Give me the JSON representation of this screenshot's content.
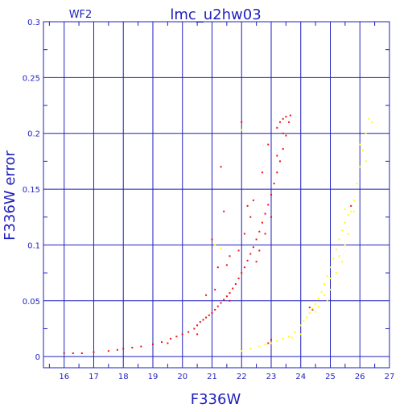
{
  "chart_data": {
    "type": "scatter",
    "title": "lmc_u2hw03",
    "subtitle": "WF2",
    "xlabel": "F336W",
    "ylabel": "F336W error",
    "xlim": [
      15.3,
      27
    ],
    "ylim": [
      -0.01,
      0.3
    ],
    "xticks": [
      "16",
      "17",
      "18",
      "19",
      "20",
      "21",
      "22",
      "23",
      "24",
      "25",
      "26",
      "27"
    ],
    "yticks": [
      "0",
      "0.05",
      "0.1",
      "0.15",
      "0.2",
      "0.25",
      "0.3"
    ],
    "grid": true,
    "colors": {
      "axis": "#1f1fbf",
      "series_main": "#ee1111",
      "series_secondary": "#ffff00"
    },
    "series": [
      {
        "points": [
          [
            16.0,
            0.003
          ],
          [
            16.3,
            0.003
          ],
          [
            16.6,
            0.003
          ],
          [
            17.0,
            0.004
          ],
          [
            17.5,
            0.005
          ],
          [
            17.8,
            0.006
          ],
          [
            18.0,
            0.007
          ],
          [
            18.3,
            0.008
          ],
          [
            18.6,
            0.009
          ],
          [
            19.0,
            0.011
          ],
          [
            19.3,
            0.013
          ],
          [
            19.6,
            0.016
          ],
          [
            19.8,
            0.018
          ],
          [
            20.0,
            0.02
          ],
          [
            20.2,
            0.022
          ],
          [
            20.4,
            0.025
          ],
          [
            20.5,
            0.028
          ],
          [
            20.6,
            0.031
          ],
          [
            20.7,
            0.033
          ],
          [
            20.8,
            0.035
          ],
          [
            20.9,
            0.037
          ],
          [
            21.0,
            0.039
          ],
          [
            21.1,
            0.042
          ],
          [
            21.2,
            0.045
          ],
          [
            21.3,
            0.048
          ],
          [
            21.4,
            0.051
          ],
          [
            21.5,
            0.054
          ],
          [
            21.6,
            0.057
          ],
          [
            21.7,
            0.061
          ],
          [
            21.8,
            0.065
          ],
          [
            21.9,
            0.07
          ],
          [
            22.0,
            0.075
          ],
          [
            22.1,
            0.08
          ],
          [
            22.2,
            0.086
          ],
          [
            22.3,
            0.092
          ],
          [
            22.4,
            0.098
          ],
          [
            22.5,
            0.105
          ],
          [
            22.6,
            0.112
          ],
          [
            22.7,
            0.12
          ],
          [
            22.8,
            0.128
          ],
          [
            22.9,
            0.136
          ],
          [
            23.0,
            0.145
          ],
          [
            23.1,
            0.155
          ],
          [
            23.2,
            0.165
          ],
          [
            23.3,
            0.175
          ],
          [
            23.4,
            0.186
          ],
          [
            23.5,
            0.198
          ],
          [
            23.6,
            0.21
          ],
          [
            23.65,
            0.216
          ],
          [
            23.5,
            0.215
          ],
          [
            23.4,
            0.213
          ],
          [
            23.3,
            0.21
          ],
          [
            23.2,
            0.205
          ],
          [
            21.0,
            0.105
          ],
          [
            20.8,
            0.055
          ],
          [
            21.2,
            0.08
          ],
          [
            21.4,
            0.13
          ],
          [
            21.3,
            0.17
          ],
          [
            22.0,
            0.21
          ],
          [
            21.1,
            0.06
          ],
          [
            21.6,
            0.09
          ],
          [
            22.1,
            0.11
          ],
          [
            22.4,
            0.14
          ],
          [
            22.7,
            0.165
          ],
          [
            22.9,
            0.19
          ],
          [
            22.2,
            0.135
          ],
          [
            21.9,
            0.095
          ],
          [
            22.6,
            0.095
          ],
          [
            22.8,
            0.11
          ],
          [
            23.0,
            0.125
          ],
          [
            22.5,
            0.085
          ],
          [
            20.5,
            0.02
          ],
          [
            19.5,
            0.012
          ],
          [
            21.6,
            0.05
          ],
          [
            22.3,
            0.125
          ],
          [
            23.2,
            0.18
          ],
          [
            23.4,
            0.2
          ],
          [
            22.9,
            0.012
          ],
          [
            23.0,
            0.015
          ],
          [
            24.4,
            0.042
          ],
          [
            24.3,
            0.044
          ],
          [
            25.7,
            0.135
          ],
          [
            21.5,
            0.082
          ]
        ]
      },
      {
        "points": [
          [
            22.0,
            0.005
          ],
          [
            22.3,
            0.007
          ],
          [
            22.6,
            0.009
          ],
          [
            22.8,
            0.011
          ],
          [
            23.0,
            0.012
          ],
          [
            23.2,
            0.014
          ],
          [
            23.4,
            0.016
          ],
          [
            23.6,
            0.018
          ],
          [
            23.8,
            0.022
          ],
          [
            24.0,
            0.028
          ],
          [
            24.1,
            0.032
          ],
          [
            24.2,
            0.035
          ],
          [
            24.3,
            0.039
          ],
          [
            24.4,
            0.043
          ],
          [
            24.5,
            0.047
          ],
          [
            24.6,
            0.052
          ],
          [
            24.7,
            0.058
          ],
          [
            24.8,
            0.065
          ],
          [
            24.9,
            0.072
          ],
          [
            25.0,
            0.08
          ],
          [
            25.1,
            0.088
          ],
          [
            25.2,
            0.096
          ],
          [
            25.3,
            0.105
          ],
          [
            25.4,
            0.113
          ],
          [
            25.5,
            0.12
          ],
          [
            25.6,
            0.127
          ],
          [
            25.7,
            0.13
          ],
          [
            25.8,
            0.14
          ],
          [
            25.9,
            0.155
          ],
          [
            26.0,
            0.17
          ],
          [
            26.1,
            0.185
          ],
          [
            26.2,
            0.2
          ],
          [
            26.3,
            0.213
          ],
          [
            26.4,
            0.21
          ],
          [
            26.2,
            0.175
          ],
          [
            25.5,
            0.1
          ],
          [
            25.3,
            0.09
          ],
          [
            25.0,
            0.07
          ],
          [
            24.8,
            0.055
          ],
          [
            24.6,
            0.045
          ],
          [
            24.5,
            0.04
          ],
          [
            25.6,
            0.11
          ],
          [
            25.4,
            0.085
          ],
          [
            25.2,
            0.075
          ],
          [
            25.0,
            0.06
          ],
          [
            24.9,
            0.05
          ],
          [
            21.1,
            0.1
          ],
          [
            21.3,
            0.097
          ],
          [
            22.0,
            0.203
          ],
          [
            25.8,
            0.13
          ],
          [
            26.0,
            0.19
          ],
          [
            25.5,
            0.132
          ],
          [
            24.0,
            0.02
          ],
          [
            23.7,
            0.017
          ]
        ]
      }
    ]
  }
}
